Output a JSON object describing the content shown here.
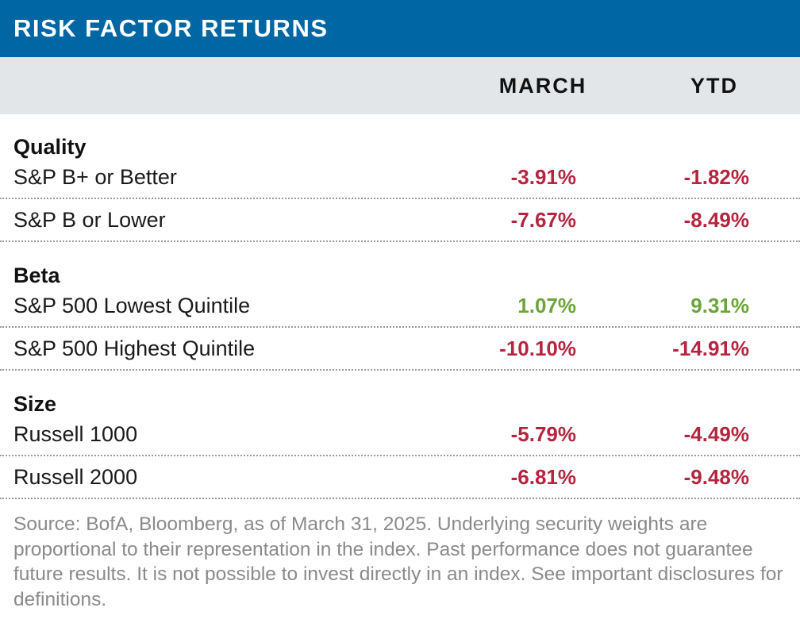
{
  "title": "RISK FACTOR RETURNS",
  "columns": {
    "march": "MARCH",
    "ytd": "YTD"
  },
  "chart_data": {
    "type": "table",
    "columns": [
      "MARCH",
      "YTD"
    ],
    "groups": [
      {
        "name": "Quality",
        "rows": [
          {
            "label": "S&P B+ or Better",
            "march": "-3.91%",
            "ytd": "-1.82%"
          },
          {
            "label": "S&P B or Lower",
            "march": "-7.67%",
            "ytd": "-8.49%"
          }
        ]
      },
      {
        "name": "Beta",
        "rows": [
          {
            "label": "S&P 500 Lowest Quintile",
            "march": "1.07%",
            "ytd": "9.31%"
          },
          {
            "label": "S&P 500 Highest Quintile",
            "march": "-10.10%",
            "ytd": "-14.91%"
          }
        ]
      },
      {
        "name": "Size",
        "rows": [
          {
            "label": "Russell 1000",
            "march": "-5.79%",
            "ytd": "-4.49%"
          },
          {
            "label": "Russell 2000",
            "march": "-6.81%",
            "ytd": "-9.48%"
          }
        ]
      }
    ]
  },
  "colors": {
    "title_bar": "#0066a4",
    "header_bg": "#e3e6e9",
    "negative": "#b5253f",
    "positive": "#6ba539"
  },
  "footnote": "Source: BofA, Bloomberg, as of March 31, 2025. Underlying security weights are proportional to their representation in the index. Past performance does not guarantee future results. It is not possible to invest directly in an index. See important disclosures for definitions."
}
